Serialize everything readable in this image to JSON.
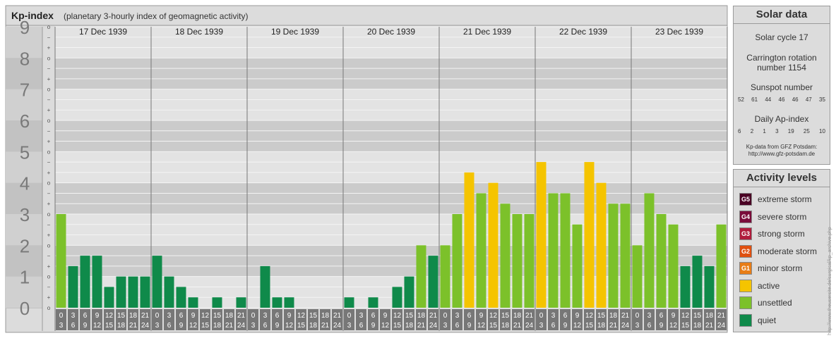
{
  "title": "Kp-index",
  "subtitle": "(planetary 3-hourly index of geomagnetic activity)",
  "chart_data": {
    "type": "bar",
    "ylim": [
      0,
      9
    ],
    "y_major_labels": [
      "0",
      "1",
      "2",
      "3",
      "4",
      "5",
      "6",
      "7",
      "8",
      "9"
    ],
    "y_minor_labels": [
      "+",
      "o",
      "−"
    ],
    "days": [
      "17 Dec 1939",
      "18 Dec 1939",
      "19 Dec 1939",
      "20 Dec 1939",
      "21 Dec 1939",
      "22 Dec 1939",
      "23 Dec 1939"
    ],
    "interval_start_labels": [
      "0",
      "3",
      "6",
      "9",
      "12",
      "15",
      "18",
      "21"
    ],
    "interval_end_labels": [
      "3",
      "6",
      "9",
      "12",
      "15",
      "18",
      "21",
      "24"
    ],
    "values": [
      [
        3.0,
        1.333,
        1.667,
        1.667,
        0.667,
        1.0,
        1.0,
        1.0
      ],
      [
        1.667,
        1.0,
        0.667,
        0.333,
        0.0,
        0.333,
        0.0,
        0.333
      ],
      [
        0.0,
        1.333,
        0.333,
        0.333,
        0.0,
        0.0,
        0.0,
        0.0
      ],
      [
        0.333,
        0.0,
        0.333,
        0.0,
        0.667,
        1.0,
        2.0,
        1.667
      ],
      [
        2.0,
        3.0,
        4.333,
        3.667,
        4.0,
        3.333,
        3.0,
        3.0
      ],
      [
        4.667,
        3.667,
        3.667,
        2.667,
        4.667,
        4.0,
        3.333,
        3.333
      ],
      [
        2.0,
        3.667,
        3.0,
        2.667,
        1.333,
        1.667,
        1.333,
        2.667
      ]
    ],
    "level_colors": {
      "quiet": "#0f8a4a",
      "unsettled": "#7cc12a",
      "active": "#f5c400",
      "minor_storm": "#e87d17",
      "moderate_storm": "#e05010",
      "strong_storm": "#b01c3c",
      "severe_storm": "#7a0c3a",
      "extreme_storm": "#4a0024"
    }
  },
  "solar_data": {
    "title": "Solar data",
    "solar_cycle": "Solar cycle 17",
    "carrington_line1": "Carrington rotation",
    "carrington_line2": "number 1154",
    "sunspot_title": "Sunspot number",
    "sunspot_numbers": [
      "52",
      "61",
      "44",
      "46",
      "46",
      "47",
      "35"
    ],
    "ap_title": "Daily Ap-index",
    "ap_values": [
      "6",
      "2",
      "1",
      "3",
      "19",
      "25",
      "10"
    ],
    "source_line1": "Kp-data from GFZ Potsdam:",
    "source_line2": "http://www.gfz-potsdam.de"
  },
  "activity_levels": {
    "title": "Activity levels",
    "items": [
      {
        "code": "G5",
        "label": "extreme storm",
        "color": "#4a0024"
      },
      {
        "code": "G4",
        "label": "severe storm",
        "color": "#7a0c3a"
      },
      {
        "code": "G3",
        "label": "strong storm",
        "color": "#b01c3c"
      },
      {
        "code": "G2",
        "label": "moderate storm",
        "color": "#e05010"
      },
      {
        "code": "G1",
        "label": "minor storm",
        "color": "#e87d17"
      },
      {
        "code": "",
        "label": "active",
        "color": "#f5c400"
      },
      {
        "code": "",
        "label": "unsettled",
        "color": "#7cc12a"
      },
      {
        "code": "",
        "label": "quiet",
        "color": "#0f8a4a"
      }
    ]
  },
  "side_url": "http://www.theusersite.de/surgical/kp_archive.php"
}
